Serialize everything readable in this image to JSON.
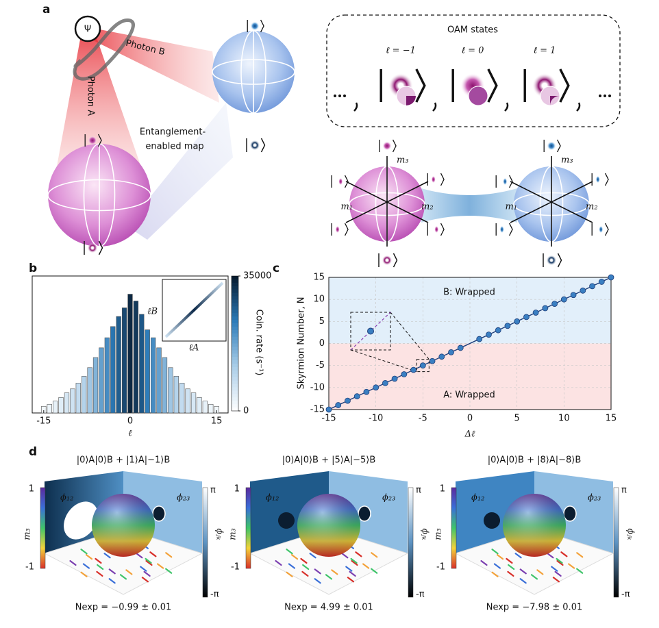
{
  "panel_labels": [
    "a",
    "b",
    "c",
    "d"
  ],
  "panel_a": {
    "psi": "Ψ",
    "photon_b": "Photon B",
    "photon_a": "Photon A",
    "map_label": [
      "Entanglement-",
      "enabled map"
    ],
    "oam_title": "OAM states",
    "oam_labels": [
      "ℓ = −1",
      "ℓ = 0",
      "ℓ = 1"
    ],
    "pink_axes": [
      "m₃",
      "m₁",
      "m₂"
    ],
    "blue_axes": [
      "m₃",
      "m₁",
      "m₂"
    ]
  },
  "chart_data": [
    {
      "type": "bar",
      "xlabel": "ℓ",
      "x": [
        -15,
        -14,
        -13,
        -12,
        -11,
        -10,
        -9,
        -8,
        -7,
        -6,
        -5,
        -4,
        -3,
        -2,
        -1,
        0,
        1,
        2,
        3,
        4,
        5,
        6,
        7,
        8,
        9,
        10,
        11,
        12,
        13,
        14,
        15
      ],
      "values": [
        1850,
        2400,
        3300,
        4300,
        5600,
        6700,
        8300,
        10200,
        12600,
        15400,
        18100,
        20900,
        24000,
        26800,
        29200,
        33000,
        31100,
        27400,
        23100,
        20900,
        18100,
        15400,
        12600,
        10200,
        8300,
        6700,
        5600,
        4300,
        3300,
        2400,
        1850
      ],
      "xlim": [
        -17,
        17
      ],
      "xticks": [
        -15,
        0,
        15
      ],
      "colorbar": {
        "label": "Coin. rate (s⁻¹)",
        "lim": [
          0,
          35000
        ],
        "ticks": [
          0,
          35000
        ],
        "colormap": [
          "#ffffff",
          "#a9cde8",
          "#2b7bb9",
          "#07182b"
        ]
      },
      "inset": {
        "xlabel": "ℓA",
        "ylabel": "ℓB"
      }
    },
    {
      "type": "scatter",
      "xlabel": "Δℓ",
      "ylabel": "Skyrmion Number, N",
      "x": [
        -15,
        -14,
        -13,
        -12,
        -11,
        -10,
        -9,
        -8,
        -7,
        -6,
        -5,
        -4,
        -3,
        -2,
        -1,
        1,
        2,
        3,
        4,
        5,
        6,
        7,
        8,
        9,
        10,
        11,
        12,
        13,
        14,
        15
      ],
      "values": [
        -15,
        -14,
        -13,
        -12,
        -11,
        -10,
        -9,
        -8,
        -7,
        -6,
        -5,
        -4,
        -3,
        -2,
        -1,
        1,
        2,
        3,
        4,
        5,
        6,
        7,
        8,
        9,
        10,
        11,
        12,
        13,
        14,
        15
      ],
      "xlim": [
        -15,
        15
      ],
      "ylim": [
        -15,
        15
      ],
      "xticks": [
        -15,
        -10,
        -5,
        0,
        5,
        10,
        15
      ],
      "yticks": [
        -15,
        -10,
        -5,
        0,
        5,
        10,
        15
      ],
      "annotations": [
        "B: Wrapped",
        "A: Wrapped"
      ],
      "color": "#3a7fc2",
      "region_colors": [
        "#e2effa",
        "#fce3e3"
      ],
      "grid": true
    }
  ],
  "panel_d": {
    "titles": [
      "|0⟩A|0⟩B + |1⟩A|−1⟩B",
      "|0⟩A|0⟩B + |5⟩A|−5⟩B",
      "|0⟩A|0⟩B + |8⟩A|−8⟩B"
    ],
    "results": [
      "Nexp = −0.99 ± 0.01",
      "Nexp = 4.99 ± 0.01",
      "Nexp = −7.98 ± 0.01"
    ],
    "phi12": "ϕ₁₂",
    "phi23": "ϕ₂₃",
    "m3": "m₃",
    "m_ticks": [
      "1",
      "-1"
    ],
    "phi_ticks": [
      "π",
      "-π"
    ],
    "phi_jk": "ϕⱼₖ"
  }
}
